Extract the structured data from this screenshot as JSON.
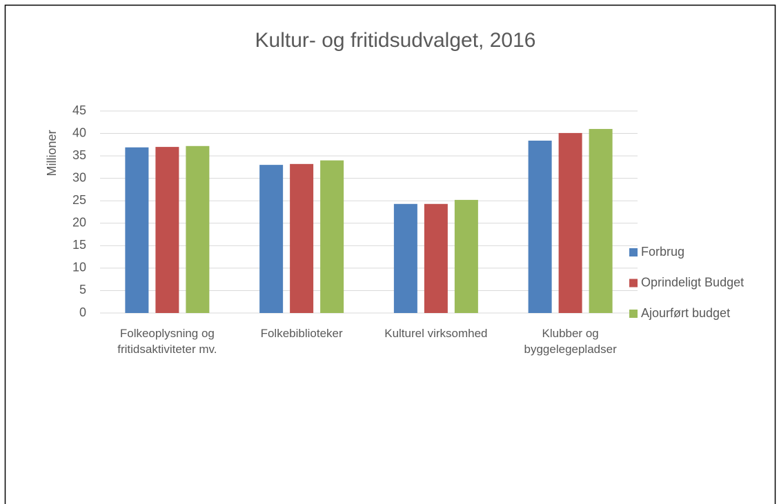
{
  "chart_data": {
    "type": "bar",
    "title": "Kultur- og fritidsudvalget, 2016",
    "y_label": "Millioner",
    "categories": [
      "Folkeoplysning og fritidsaktiviteter mv.",
      "Folkebiblioteker",
      "Kulturel virksomhed",
      "Klubber og byggelegepladser"
    ],
    "series": [
      {
        "name": "Forbrug",
        "color": "#4f81bd",
        "values": [
          36.9,
          33.0,
          24.3,
          38.4
        ]
      },
      {
        "name": "Oprindeligt Budget",
        "color": "#c0504d",
        "values": [
          37.0,
          33.2,
          24.3,
          40.1
        ]
      },
      {
        "name": "Ajourført budget",
        "color": "#9bbb59",
        "values": [
          37.2,
          34.0,
          25.2,
          41.0
        ]
      }
    ],
    "ylim": [
      0,
      45
    ],
    "yticks": [
      0,
      5,
      10,
      15,
      20,
      25,
      30,
      35,
      40,
      45
    ],
    "grid": true,
    "legend": "right"
  }
}
